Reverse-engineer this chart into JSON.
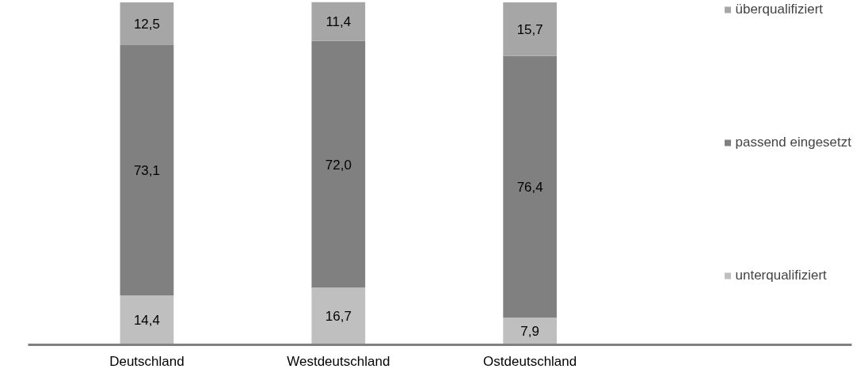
{
  "chart_data": {
    "type": "bar",
    "stacked": true,
    "categories": [
      "Deutschland",
      "Westdeutschland",
      "Ostdeutschland"
    ],
    "series": [
      {
        "name": "unterqualifiziert",
        "color": "#bfbfbf",
        "values": [
          14.4,
          16.7,
          7.9
        ],
        "value_labels": [
          "14,4",
          "16,7",
          "7,9"
        ]
      },
      {
        "name": "passend eingesetzt",
        "color": "#808080",
        "values": [
          73.1,
          72.0,
          76.4
        ],
        "value_labels": [
          "73,1",
          "72,0",
          "76,4"
        ]
      },
      {
        "name": "überqualifiziert",
        "color": "#a6a6a6",
        "values": [
          12.5,
          11.4,
          15.7
        ],
        "value_labels": [
          "12,5",
          "11,4",
          "15,7"
        ]
      }
    ],
    "legend": "right",
    "grid": false
  }
}
